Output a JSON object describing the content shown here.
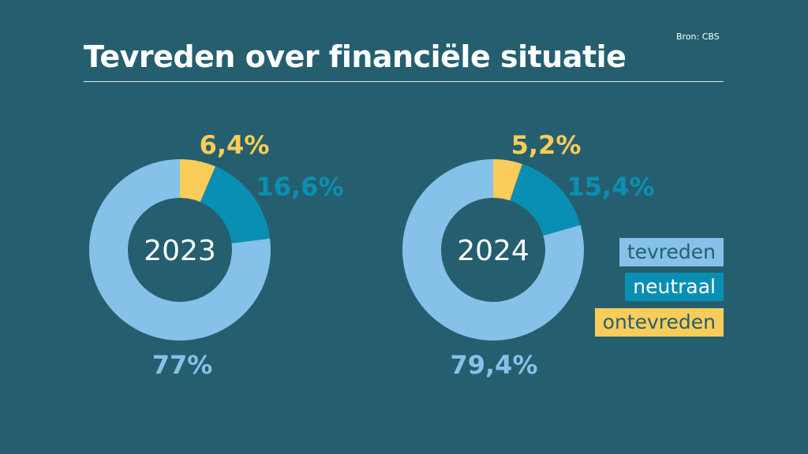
{
  "title": "Tevreden over financiële situatie",
  "source": "Bron: CBS",
  "colors": {
    "background": "#255F6F",
    "tevreden": "#85C1E9",
    "neutraal": "#0A8FB4",
    "ontevreden": "#FACC5A"
  },
  "legend": [
    {
      "label": "tevreden",
      "color": "#85C1E9",
      "text_color": "#255F6F"
    },
    {
      "label": "neutraal",
      "color": "#0A8FB4",
      "text_color": "#FFFFFF"
    },
    {
      "label": "ontevreden",
      "color": "#FACC5A",
      "text_color": "#255F6F"
    }
  ],
  "chart_data": [
    {
      "type": "pie",
      "center_label": "2023",
      "categories": [
        "ontevreden",
        "neutraal",
        "tevreden"
      ],
      "values": [
        6.4,
        16.6,
        77
      ],
      "value_labels": [
        "6,4%",
        "16,6%",
        "77%"
      ]
    },
    {
      "type": "pie",
      "center_label": "2024",
      "categories": [
        "ontevreden",
        "neutraal",
        "tevreden"
      ],
      "values": [
        5.2,
        15.4,
        79.4
      ],
      "value_labels": [
        "5,2%",
        "15,4%",
        "79,4%"
      ]
    }
  ]
}
